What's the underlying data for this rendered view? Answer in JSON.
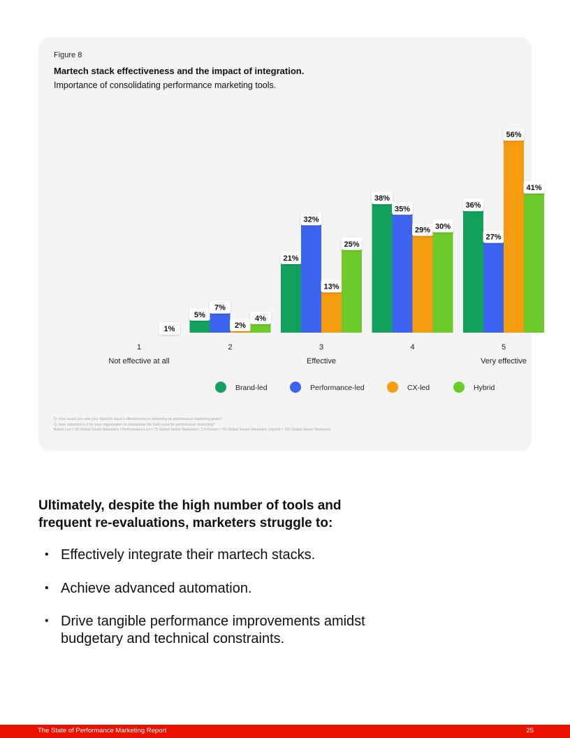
{
  "figure": {
    "label": "Figure 8",
    "title": "Martech stack effectiveness and the impact of integration.",
    "subtitle": "Importance of consolidating performance marketing tools."
  },
  "chart_data": {
    "type": "bar",
    "categories": [
      "1",
      "2",
      "3",
      "4",
      "5"
    ],
    "category_labels": [
      "Not effective at all",
      "",
      "Effective",
      "",
      "Very effective"
    ],
    "series": [
      {
        "name": "Brand-led",
        "color": "#12a05c",
        "values": [
          0,
          5,
          21,
          38,
          36
        ]
      },
      {
        "name": "Performance-led",
        "color": "#3d64f0",
        "values": [
          0,
          7,
          32,
          35,
          27
        ]
      },
      {
        "name": "CX-led",
        "color": "#f59c0f",
        "values": [
          0,
          2,
          13,
          29,
          56
        ]
      },
      {
        "name": "Hybrid",
        "color": "#6ccb2a",
        "values": [
          1,
          4,
          25,
          30,
          41
        ]
      }
    ],
    "value_suffix": "%",
    "ylim": [
      0,
      60
    ],
    "grid": false,
    "legend_position": "bottom"
  },
  "footnotes": [
    "Q: How would you rate your Martech stack's effectiveness in delivering on performance marketing goals?",
    "Q: How important is it for your organization to consolidate the tools used for performance marketing?",
    "Brand-Led = 58 Global Senior Marketers | Performance-Led = 75 Global Senior Marketers | CX=Driven = 93 Global Senior Marketers | Hybrid = 163 Global Senior Marketers"
  ],
  "body": {
    "headline": "Ultimately, despite the high number of tools and frequent re-evaluations, marketers struggle to:",
    "bullet_symbol": "•",
    "bullets": [
      "Effectively integrate their martech stacks.",
      "Achieve advanced automation.",
      "Drive tangible performance improvements amidst budgetary and technical constraints."
    ]
  },
  "footer": {
    "title": "The State of Performance Marketing Report",
    "page": "25"
  }
}
